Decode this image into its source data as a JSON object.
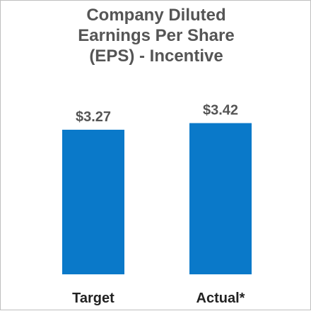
{
  "chart_data": {
    "type": "bar",
    "title": "Company Diluted\nEarnings Per Share\n(EPS) - Incentive",
    "categories": [
      "Target",
      "Actual*"
    ],
    "values": [
      3.27,
      3.42
    ],
    "value_labels": [
      "$3.27",
      "$3.42"
    ],
    "bar_color": "#0a79c9",
    "ylim": [
      0,
      3.7
    ],
    "grid": false,
    "legend": "none"
  }
}
